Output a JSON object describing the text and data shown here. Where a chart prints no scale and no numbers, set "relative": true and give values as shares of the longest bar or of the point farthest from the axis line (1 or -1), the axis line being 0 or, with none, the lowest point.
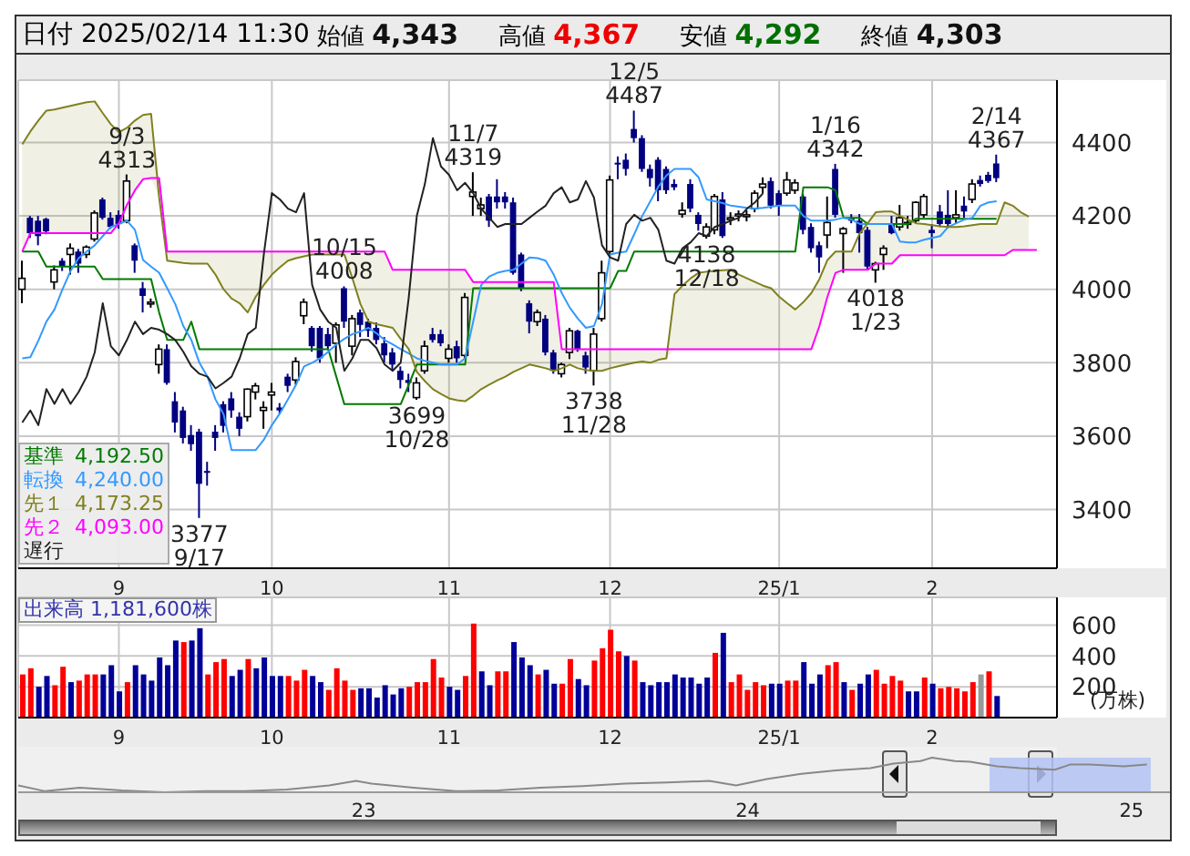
{
  "chart_data": [
    {
      "type": "candlestick",
      "title": "日付 2025/02/14 11:30",
      "annotations": [
        "始値 4,343",
        "高値 4,367",
        "安値 4,292",
        "終値 4,303",
        {
          "text": "9/3\n4313",
          "y": 4313
        },
        {
          "text": "10/15\n4008",
          "y": 4008
        },
        {
          "text": "11/7\n4319",
          "y": 4319
        },
        {
          "text": "12/5\n4487",
          "y": 4487
        },
        {
          "text": "1/16\n4342",
          "y": 4342
        },
        {
          "text": "2/14\n4367",
          "y": 4367
        },
        {
          "text": "3377\n9/17",
          "y": 3377
        },
        {
          "text": "3699\n10/28",
          "y": 3699
        },
        {
          "text": "3738\n11/28",
          "y": 3738
        },
        {
          "text": "4138\n12/18",
          "y": 4138
        },
        {
          "text": "4018\n1/23",
          "y": 4018
        }
      ],
      "categories": [
        null,
        null,
        null,
        null,
        null,
        null,
        null,
        null,
        null,
        null,
        null,
        null,
        "9",
        null,
        null,
        null,
        null,
        null,
        null,
        null,
        null,
        null,
        null,
        null,
        null,
        null,
        null,
        null,
        null,
        null,
        null,
        "10",
        null,
        null,
        null,
        null,
        null,
        null,
        null,
        null,
        null,
        null,
        null,
        null,
        null,
        null,
        null,
        null,
        null,
        null,
        null,
        null,
        null,
        "11",
        null,
        null,
        null,
        null,
        null,
        null,
        null,
        null,
        null,
        null,
        null,
        null,
        null,
        null,
        null,
        null,
        null,
        null,
        null,
        "12",
        null,
        null,
        null,
        null,
        null,
        null,
        null,
        null,
        null,
        null,
        null,
        null,
        null,
        null,
        null,
        null,
        null,
        null,
        null,
        null,
        "25/1",
        null,
        null,
        null,
        null,
        null,
        null,
        null,
        null,
        null,
        null,
        null,
        null,
        null,
        null,
        null,
        null,
        null,
        null,
        "2",
        null,
        null,
        null,
        null,
        null,
        null,
        null,
        null,
        null,
        null,
        null,
        null,
        null,
        null,
        null
      ],
      "colors": [
        "#ffffff",
        "#000080",
        "#000080",
        "#000080",
        "#ffffff",
        "#000080",
        "#ffffff",
        "#000080",
        "#ffffff",
        "#ffffff",
        "#000080",
        "#000080",
        "#000080",
        "#ffffff",
        "#000080",
        "#000080",
        "#ffffff",
        "#ffffff",
        "#000080",
        "#000080",
        "#000080",
        "#000080",
        "#000080",
        "#000080",
        "#000080",
        "#000080",
        "#000080",
        "#000080",
        "#ffffff",
        "#ffffff",
        "#ffffff",
        "#ffffff",
        "#000080",
        "#000080",
        "#ffffff",
        "#ffffff",
        "#000080",
        "#000080",
        "#000080",
        "#ffffff",
        "#000080",
        "#ffffff",
        "#000080",
        "#000080",
        "#000080",
        "#000080",
        "#000080",
        "#000080",
        "#000080",
        "#ffffff",
        "#ffffff",
        "#000080",
        "#000080",
        "#ffffff",
        "#000080",
        "#ffffff",
        "#ffffff",
        "#ffffff",
        "#000080",
        "#000080",
        "#000080",
        "#000080",
        "#000080",
        "#000080",
        "#ffffff",
        "#000080",
        "#000080",
        "#ffffff",
        "#ffffff",
        "#000080",
        "#000080",
        "#ffffff",
        "#ffffff",
        "#ffffff",
        "#000080",
        "#000080",
        "#000080",
        "#000080",
        "#000080",
        "#000080",
        "#000080",
        "#000080",
        "#ffffff",
        "#000080",
        "#000080",
        "#ffffff",
        "#ffffff",
        "#000080",
        "#ffffff",
        "#ffffff",
        "#ffffff",
        "#ffffff",
        "#ffffff",
        "#000080",
        "#000080",
        "#ffffff",
        "#ffffff",
        "#000080",
        "#000080",
        "#000080",
        "#ffffff",
        "#000080",
        "#ffffff",
        "#000080",
        "#000080",
        "#000080",
        "#ffffff",
        "#ffffff",
        "#000080",
        "#ffffff",
        "#ffffff",
        "#ffffff",
        "#ffffff",
        "#000080",
        "#000080",
        "#000080",
        "#ffffff",
        "#000080",
        "#ffffff",
        "#000080",
        "#000080",
        "#000080",
        null,
        null,
        null,
        null,
        null,
        null,
        null
      ],
      "ohlc": [
        [
          4000,
          4078,
          3962,
          4030
        ],
        [
          4195,
          4200,
          4140,
          4153
        ],
        [
          4187,
          4200,
          4120,
          4145
        ],
        [
          4192,
          4195,
          4150,
          4158
        ],
        [
          4020,
          4065,
          4000,
          4053
        ],
        [
          4078,
          4085,
          4050,
          4062
        ],
        [
          4095,
          4125,
          4040,
          4112
        ],
        [
          4103,
          4110,
          4045,
          4070
        ],
        [
          4095,
          4120,
          4085,
          4115
        ],
        [
          4137,
          4215,
          4130,
          4208
        ],
        [
          4245,
          4250,
          4190,
          4195
        ],
        [
          4195,
          4210,
          4165,
          4170
        ],
        [
          4203,
          4215,
          4165,
          4178
        ],
        [
          4187,
          4313,
          4180,
          4295
        ],
        [
          4120,
          4125,
          4045,
          4078
        ],
        [
          4003,
          4020,
          3937,
          3982
        ],
        [
          3960,
          3975,
          3950,
          3965
        ],
        [
          3795,
          3850,
          3770,
          3837
        ],
        [
          3837,
          3850,
          3740,
          3745
        ],
        [
          3695,
          3720,
          3610,
          3637
        ],
        [
          3670,
          3680,
          3580,
          3595
        ],
        [
          3603,
          3630,
          3560,
          3578
        ],
        [
          3612,
          3620,
          3377,
          3470
        ],
        [
          3505,
          3530,
          3465,
          3500
        ],
        [
          3612,
          3630,
          3560,
          3595
        ],
        [
          3687,
          3695,
          3610,
          3628
        ],
        [
          3703,
          3720,
          3650,
          3670
        ],
        [
          3653,
          3665,
          3600,
          3620
        ],
        [
          3653,
          3730,
          3640,
          3728
        ],
        [
          3720,
          3745,
          3700,
          3737
        ],
        [
          3670,
          3695,
          3620,
          3678
        ],
        [
          3712,
          3745,
          3670,
          3720
        ],
        [
          3678,
          3690,
          3660,
          3670
        ],
        [
          3762,
          3770,
          3720,
          3737
        ],
        [
          3753,
          3815,
          3740,
          3803
        ],
        [
          3928,
          3975,
          3905,
          3965
        ],
        [
          3895,
          3900,
          3830,
          3845
        ],
        [
          3895,
          3900,
          3800,
          3812
        ],
        [
          3878,
          3895,
          3835,
          3845
        ],
        [
          3853,
          3910,
          3800,
          3903
        ],
        [
          4003,
          4008,
          3895,
          3912
        ],
        [
          3845,
          3930,
          3820,
          3920
        ],
        [
          3937,
          3945,
          3870,
          3903
        ],
        [
          3912,
          3920,
          3870,
          3887
        ],
        [
          3895,
          3910,
          3850,
          3862
        ],
        [
          3853,
          3870,
          3800,
          3820
        ],
        [
          3828,
          3840,
          3780,
          3795
        ],
        [
          3778,
          3790,
          3730,
          3753
        ],
        [
          3753,
          3770,
          3720,
          3745
        ],
        [
          3705,
          3760,
          3699,
          3745
        ],
        [
          3778,
          3860,
          3770,
          3845
        ],
        [
          3878,
          3895,
          3855,
          3862
        ],
        [
          3878,
          3890,
          3845,
          3853
        ],
        [
          3812,
          3850,
          3800,
          3837
        ],
        [
          3845,
          3860,
          3800,
          3812
        ],
        [
          3820,
          3990,
          3810,
          3978
        ],
        [
          4253,
          4319,
          4200,
          4265
        ],
        [
          4220,
          4250,
          4200,
          4230
        ],
        [
          4253,
          4260,
          4170,
          4187
        ],
        [
          4253,
          4300,
          4220,
          4237
        ],
        [
          4253,
          4265,
          4220,
          4237
        ],
        [
          4237,
          4250,
          4040,
          4045
        ],
        [
          4095,
          4100,
          3995,
          4003
        ],
        [
          3962,
          3970,
          3880,
          3912
        ],
        [
          3912,
          3945,
          3900,
          3937
        ],
        [
          3920,
          3930,
          3820,
          3828
        ],
        [
          3828,
          3835,
          3770,
          3778
        ],
        [
          3770,
          3800,
          3760,
          3795
        ],
        [
          3828,
          3895,
          3810,
          3887
        ],
        [
          3887,
          3890,
          3830,
          3837
        ],
        [
          3820,
          3830,
          3770,
          3787
        ],
        [
          3778,
          3895,
          3738,
          3878
        ],
        [
          3920,
          4078,
          3912,
          4045
        ],
        [
          4103,
          4310,
          4090,
          4298
        ],
        [
          4345,
          4362,
          4300,
          4340
        ],
        [
          4353,
          4370,
          4310,
          4328
        ],
        [
          4437,
          4487,
          4400,
          4412
        ],
        [
          4412,
          4420,
          4320,
          4328
        ],
        [
          4328,
          4340,
          4280,
          4303
        ],
        [
          4353,
          4360,
          4240,
          4270
        ],
        [
          4328,
          4335,
          4260,
          4270
        ],
        [
          4287,
          4300,
          4270,
          4278
        ],
        [
          4205,
          4237,
          4195,
          4215
        ],
        [
          4287,
          4300,
          4210,
          4220
        ],
        [
          4203,
          4210,
          4160,
          4178
        ],
        [
          4145,
          4180,
          4138,
          4170
        ],
        [
          4162,
          4260,
          4150,
          4253
        ],
        [
          4245,
          4265,
          4140,
          4145
        ],
        [
          4190,
          4210,
          4175,
          4195
        ],
        [
          4200,
          4215,
          4185,
          4205
        ],
        [
          4200,
          4215,
          4185,
          4203
        ],
        [
          4220,
          4270,
          4210,
          4262
        ],
        [
          4278,
          4305,
          4262,
          4287
        ],
        [
          4295,
          4305,
          4220,
          4228
        ],
        [
          4262,
          4270,
          4200,
          4228
        ],
        [
          4262,
          4320,
          4255,
          4298
        ],
        [
          4270,
          4300,
          4260,
          4290
        ],
        [
          4253,
          4260,
          4150,
          4162
        ],
        [
          4170,
          4180,
          4100,
          4112
        ],
        [
          4120,
          4130,
          4045,
          4087
        ],
        [
          4148,
          4253,
          4112,
          4182
        ],
        [
          4328,
          4342,
          4195,
          4203
        ],
        [
          4152,
          4170,
          4045,
          4165
        ],
        [
          4195,
          4205,
          4180,
          4187
        ],
        [
          4187,
          4205,
          4100,
          4153
        ],
        [
          4162,
          4170,
          4055,
          4062
        ],
        [
          4053,
          4075,
          4018,
          4070
        ],
        [
          4095,
          4120,
          4053,
          4112
        ],
        [
          4178,
          4200,
          4150,
          4153
        ],
        [
          4170,
          4230,
          4160,
          4195
        ],
        [
          4178,
          4200,
          4165,
          4182
        ],
        [
          4187,
          4240,
          4180,
          4237
        ],
        [
          4203,
          4260,
          4195,
          4253
        ],
        [
          4162,
          4178,
          4112,
          4153
        ],
        [
          4212,
          4230,
          4170,
          4178
        ],
        [
          4203,
          4270,
          4170,
          4178
        ],
        [
          4195,
          4270,
          4180,
          4203
        ],
        [
          4228,
          4253,
          4195,
          4212
        ],
        [
          4245,
          4300,
          4235,
          4287
        ],
        [
          4298,
          4310,
          4280,
          4287
        ],
        [
          4312,
          4320,
          4290,
          4295
        ],
        [
          4343,
          4367,
          4292,
          4303
        ],
        null,
        null,
        null,
        null,
        null,
        null,
        null
      ],
      "series": [
        {
          "type": "line",
          "name": "基準 4,192.50",
          "color": "#007a00",
          "values": [
            4103,
            4103,
            4103,
            4062,
            4062,
            4062,
            4062,
            4062,
            4062,
            4062,
            4028,
            4028,
            4028,
            4028,
            4028,
            4028,
            4028,
            3937,
            3862,
            3862,
            3862,
            3912,
            3837,
            3837,
            3837,
            3837,
            3837,
            3837,
            3837,
            3837,
            3837,
            3837,
            3837,
            3837,
            3837,
            3837,
            3837,
            3837,
            3837,
            3762,
            3687,
            3687,
            3687,
            3687,
            3687,
            3687,
            3687,
            3687,
            3740,
            3795,
            3795,
            3795,
            3795,
            3795,
            3795,
            3795,
            4003,
            4003,
            4003,
            4003,
            4003,
            4003,
            4003,
            4003,
            4003,
            4003,
            4003,
            4003,
            4003,
            4003,
            4003,
            4003,
            4003,
            4003,
            4050,
            4050,
            4103,
            4103,
            4103,
            4103,
            4103,
            4103,
            4103,
            4103,
            4103,
            4103,
            4103,
            4103,
            4103,
            4103,
            4103,
            4103,
            4103,
            4103,
            4103,
            4103,
            4103,
            4278,
            4278,
            4278,
            4278,
            4270,
            4195,
            4195,
            4195,
            4178,
            4178,
            4178,
            4178,
            4178,
            4178,
            4192.5,
            4192.5,
            4192.5,
            4192.5,
            4192.5,
            4192.5,
            4192.5,
            4192.5,
            4192.5,
            4192.5,
            4192.5,
            null,
            null,
            null,
            null,
            null,
            null,
            null
          ]
        },
        {
          "type": "line",
          "name": "転換 4,240.00",
          "color": "#3399ff",
          "values": [
            3812,
            3815,
            3860,
            3912,
            3945,
            4000,
            4050,
            4085,
            4103,
            4120,
            4145,
            4170,
            4178,
            4187,
            4162,
            4080,
            4062,
            4045,
            4003,
            3960,
            3900,
            3862,
            3800,
            3762,
            3700,
            3660,
            3562,
            3562,
            3562,
            3562,
            3590,
            3630,
            3662,
            3700,
            3740,
            3790,
            3800,
            3812,
            3830,
            3850,
            3865,
            3878,
            3885,
            3895,
            3880,
            3862,
            3850,
            3837,
            3825,
            3812,
            3805,
            3800,
            3795,
            3795,
            3795,
            3812,
            3912,
            4012,
            4035,
            4045,
            4050,
            4053,
            4070,
            4087,
            4085,
            4078,
            4040,
            3990,
            3950,
            3920,
            3895,
            3900,
            3960,
            4095,
            4100,
            4103,
            4150,
            4200,
            4240,
            4280,
            4310,
            4328,
            4328,
            4328,
            4305,
            4245,
            4240,
            4235,
            4228,
            4225,
            4222,
            4220,
            4222,
            4225,
            4228,
            4228,
            4228,
            4200,
            4187,
            4187,
            4187,
            4190,
            4195,
            4190,
            4178,
            4178,
            4178,
            4178,
            4178,
            4130,
            4128,
            4128,
            4135,
            4140,
            4145,
            4170,
            4180,
            4190,
            4195,
            4228,
            4237,
            4240,
            null,
            null,
            null,
            null,
            null,
            null,
            null
          ]
        },
        {
          "type": "line",
          "name": "先１ 4,173.25",
          "color": "#808020",
          "values": [
            4395,
            4430,
            4460,
            4487,
            4490,
            4495,
            4500,
            4505,
            4510,
            4512,
            4480,
            4450,
            4428,
            4440,
            4460,
            4475,
            4478,
            4250,
            4078,
            4075,
            4072,
            4070,
            4070,
            4070,
            4040,
            4000,
            3975,
            3962,
            3937,
            3980,
            4012,
            4040,
            4060,
            4078,
            4085,
            4090,
            4095,
            4095,
            4095,
            4095,
            4095,
            4030,
            3960,
            3912,
            3905,
            3900,
            3895,
            3865,
            3837,
            3775,
            3750,
            3728,
            3715,
            3703,
            3698,
            3695,
            3710,
            3728,
            3740,
            3752,
            3762,
            3775,
            3785,
            3795,
            3790,
            3785,
            3778,
            3785,
            3795,
            3785,
            3780,
            3778,
            3778,
            3785,
            3790,
            3795,
            3800,
            3803,
            3800,
            3808,
            3812,
            3987,
            4010,
            4030,
            4045,
            4048,
            4050,
            4052,
            4053,
            4040,
            4030,
            4020,
            4010,
            4003,
            3980,
            3962,
            3945,
            3965,
            3990,
            4028,
            4080,
            4103,
            4103,
            4103,
            4153,
            4180,
            4210,
            4212,
            4212,
            4200,
            4190,
            4180,
            4178,
            4175,
            4172,
            4170,
            4170,
            4172,
            4175,
            4178,
            4178,
            4178,
            4237,
            4228,
            4210,
            4198,
            null,
            null,
            null
          ]
        },
        {
          "type": "line",
          "name": "先２ 4,093.00",
          "color": "#ff00ff",
          "values": [
            4103,
            4153,
            4153,
            4153,
            4153,
            4153,
            4153,
            4153,
            4153,
            4153,
            4153,
            4153,
            4180,
            4230,
            4270,
            4300,
            4303,
            4303,
            4103,
            4103,
            4103,
            4103,
            4103,
            4103,
            4103,
            4103,
            4103,
            4103,
            4103,
            4103,
            4103,
            4103,
            4103,
            4103,
            4103,
            4103,
            4103,
            4103,
            4103,
            4103,
            4103,
            4103,
            4103,
            4103,
            4103,
            4103,
            4053,
            4053,
            4053,
            4053,
            4053,
            4053,
            4053,
            4053,
            4053,
            4053,
            4020,
            4020,
            4020,
            4020,
            4020,
            4020,
            4020,
            4020,
            4020,
            4020,
            4020,
            3837,
            3837,
            3837,
            3837,
            3837,
            3837,
            3837,
            3837,
            3837,
            3837,
            3837,
            3837,
            3837,
            3837,
            3837,
            3837,
            3837,
            3837,
            3837,
            3837,
            3837,
            3837,
            3837,
            3837,
            3837,
            3837,
            3837,
            3837,
            3837,
            3837,
            3837,
            3837,
            3900,
            3980,
            4045,
            4053,
            4053,
            4053,
            4053,
            4070,
            4070,
            4070,
            4093,
            4093,
            4093,
            4093,
            4093,
            4093,
            4093,
            4093,
            4093,
            4093,
            4093,
            4093,
            4093,
            4093,
            4107,
            4107,
            4107,
            4107,
            null,
            null
          ]
        },
        {
          "type": "line",
          "name": "遅行",
          "color": "#222222",
          "values": [
            3637,
            3670,
            3630,
            3728,
            3688,
            3728,
            3688,
            3720,
            3762,
            3828,
            3962,
            3845,
            3820,
            3862,
            3912,
            3878,
            3895,
            3890,
            3878,
            3862,
            3830,
            3790,
            3770,
            3762,
            3730,
            3745,
            3762,
            3812,
            3878,
            3895,
            4095,
            4262,
            4245,
            4220,
            4210,
            4262,
            4012,
            3945,
            3912,
            3895,
            3778,
            3812,
            3862,
            3862,
            3840,
            3795,
            3778,
            3800,
            3978,
            4200,
            4287,
            4412,
            4335,
            4312,
            4270,
            4290,
            4262,
            4220,
            4195,
            4170,
            4178,
            4178,
            4178,
            4195,
            4212,
            4228,
            4262,
            4278,
            4237,
            4245,
            4295,
            4250,
            4120,
            4087,
            4078,
            4178,
            4203,
            4187,
            4195,
            4162,
            4078,
            4070,
            4112,
            4128,
            4153,
            4145,
            4170,
            4178,
            4187,
            4195,
            4220,
            4237,
            4262,
            null,
            null,
            null,
            null,
            null,
            null,
            null,
            null,
            null,
            null,
            null,
            null,
            null,
            null,
            null,
            null,
            null,
            null,
            null,
            null,
            null,
            null,
            null,
            null,
            null,
            null,
            null,
            null,
            null,
            null,
            null,
            null,
            null,
            null,
            null,
            null
          ]
        }
      ],
      "ylim": [
        3240,
        4570
      ],
      "yticks": [
        3400,
        3600,
        3800,
        4000,
        4200,
        4400
      ],
      "grid": true,
      "legend": "bottom left"
    },
    {
      "type": "bar",
      "title": "出来高 1,181,600株",
      "ylabel": "(万株)",
      "categories": [
        null,
        null,
        null,
        null,
        null,
        null,
        null,
        null,
        null,
        null,
        null,
        null,
        "9",
        null,
        null,
        null,
        null,
        null,
        null,
        null,
        null,
        null,
        null,
        null,
        null,
        null,
        null,
        null,
        null,
        null,
        null,
        "10",
        null,
        null,
        null,
        null,
        null,
        null,
        null,
        null,
        null,
        null,
        null,
        null,
        null,
        null,
        null,
        null,
        null,
        null,
        null,
        null,
        null,
        "11",
        null,
        null,
        null,
        null,
        null,
        null,
        null,
        null,
        null,
        null,
        null,
        null,
        null,
        null,
        null,
        null,
        null,
        null,
        null,
        "12",
        null,
        null,
        null,
        null,
        null,
        null,
        null,
        null,
        null,
        null,
        null,
        null,
        null,
        null,
        null,
        null,
        null,
        null,
        null,
        null,
        "25/1",
        null,
        null,
        null,
        null,
        null,
        null,
        null,
        null,
        null,
        null,
        null,
        null,
        null,
        null,
        null,
        null,
        null,
        null,
        "2",
        null,
        null,
        null,
        null,
        null,
        null,
        null,
        null,
        null,
        null,
        null,
        null,
        null,
        null,
        null
      ],
      "values": [
        280,
        320,
        200,
        270,
        210,
        330,
        230,
        240,
        280,
        280,
        280,
        340,
        170,
        230,
        340,
        280,
        240,
        390,
        340,
        500,
        490,
        500,
        580,
        280,
        360,
        380,
        270,
        310,
        380,
        320,
        390,
        270,
        270,
        270,
        240,
        310,
        270,
        230,
        180,
        320,
        240,
        180,
        190,
        190,
        130,
        210,
        150,
        190,
        200,
        230,
        230,
        380,
        260,
        200,
        180,
        270,
        610,
        300,
        210,
        300,
        300,
        490,
        390,
        340,
        280,
        310,
        220,
        220,
        380,
        250,
        210,
        370,
        450,
        570,
        430,
        400,
        370,
        230,
        210,
        230,
        230,
        280,
        260,
        260,
        220,
        260,
        420,
        550,
        230,
        280,
        180,
        230,
        210,
        220,
        220,
        240,
        240,
        360,
        220,
        280,
        340,
        360,
        230,
        180,
        220,
        280,
        310,
        220,
        270,
        240,
        170,
        170,
        260,
        220,
        190,
        200,
        190,
        170,
        230,
        280,
        300,
        140,
        null,
        null,
        null,
        null,
        null,
        null,
        null
      ],
      "colors": [
        "#ff0000",
        "#ff0000",
        "#000099",
        "#000099",
        "#ff0000",
        "#ff0000",
        "#000099",
        "#ff0000",
        "#ff0000",
        "#ff0000",
        "#000099",
        "#000099",
        "#000099",
        "#ff0000",
        "#000099",
        "#000099",
        "#000099",
        "#000099",
        "#000099",
        "#000099",
        "#ff0000",
        "#000099",
        "#000099",
        "#ff0000",
        "#ff0000",
        "#ff0000",
        "#000099",
        "#000099",
        "#ff0000",
        "#000099",
        "#000099",
        "#000099",
        "#000099",
        "#ff0000",
        "#ff0000",
        "#ff0000",
        "#000099",
        "#000099",
        "#ff0000",
        "#ff0000",
        "#ff0000",
        "#ff0000",
        "#000099",
        "#000099",
        "#000099",
        "#000099",
        "#000099",
        "#000099",
        "#ff0000",
        "#ff0000",
        "#ff0000",
        "#ff0000",
        "#ff0000",
        "#000099",
        "#000099",
        "#ff0000",
        "#ff0000",
        "#000099",
        "#000099",
        "#ff0000",
        "#ff0000",
        "#000099",
        "#000099",
        "#000099",
        "#ff0000",
        "#000099",
        "#000099",
        "#ff0000",
        "#ff0000",
        "#000099",
        "#000099",
        "#ff0000",
        "#ff0000",
        "#ff0000",
        "#ff0000",
        "#000099",
        "#ff0000",
        "#000099",
        "#000099",
        "#000099",
        "#000099",
        "#000099",
        "#000099",
        "#000099",
        "#000099",
        "#000099",
        "#ff0000",
        "#000099",
        "#ff0000",
        "#ff0000",
        "#ff0000",
        "#ff0000",
        "#ff0000",
        "#000099",
        "#000099",
        "#ff0000",
        "#ff0000",
        "#000099",
        "#000099",
        "#000099",
        "#ff0000",
        "#ff0000",
        "#000099",
        "#ff0000",
        "#000099",
        "#000099",
        "#ff0000",
        "#ff0000",
        "#ff0000",
        "#ff0000",
        "#000099",
        "#000099",
        "#ff0000",
        "#000099",
        "#ff0000",
        "#ff0000",
        "#ff0000",
        "#ff0000",
        "#ff0000",
        "#999999",
        "#ff0000",
        "#000099",
        null,
        null,
        null,
        null,
        null,
        null,
        null
      ],
      "ylim": [
        0,
        780
      ],
      "yticks": [
        200,
        400,
        600
      ],
      "grid": true
    },
    {
      "type": "line",
      "relative": true,
      "x": [
        2022.1,
        2022.17,
        2022.26,
        2022.37,
        2022.48,
        2022.59,
        2022.69,
        2022.8,
        2022.91,
        2022.98,
        2023.02,
        2023.13,
        2023.24,
        2023.35,
        2023.46,
        2023.57,
        2023.68,
        2023.79,
        2023.9,
        2023.97,
        2024.05,
        2024.14,
        2024.23,
        2024.32,
        2024.38,
        2024.45,
        2024.48,
        2024.54,
        2024.58,
        2024.65,
        2024.71,
        2024.8,
        2024.84,
        2024.89,
        2024.98,
        2025.04
      ],
      "series": [
        {
          "color": "#888888",
          "values": [
            0.2,
            0.03,
            0.13,
            0.05,
            0,
            0.03,
            0.03,
            0.08,
            0.2,
            0.33,
            0.25,
            0.13,
            0.03,
            0.05,
            0.13,
            0.18,
            0.25,
            0.28,
            0.33,
            0.2,
            0.38,
            0.53,
            0.63,
            0.7,
            0.83,
            0.9,
            1,
            0.9,
            0.88,
            0.75,
            0.7,
            0.65,
            0.8,
            0.8,
            0.75,
            0.8
          ]
        }
      ],
      "xlim": [
        2022.1,
        2025.1
      ],
      "xticks": [
        {
          "value": 2023,
          "label": "23"
        },
        {
          "value": 2024,
          "label": "24"
        },
        {
          "value": 2025,
          "label": "25"
        }
      ],
      "bands": [
        {
          "axis": "x",
          "from": 2024.63,
          "to": 2025.05,
          "color": "#b4c4f4"
        }
      ]
    }
  ]
}
